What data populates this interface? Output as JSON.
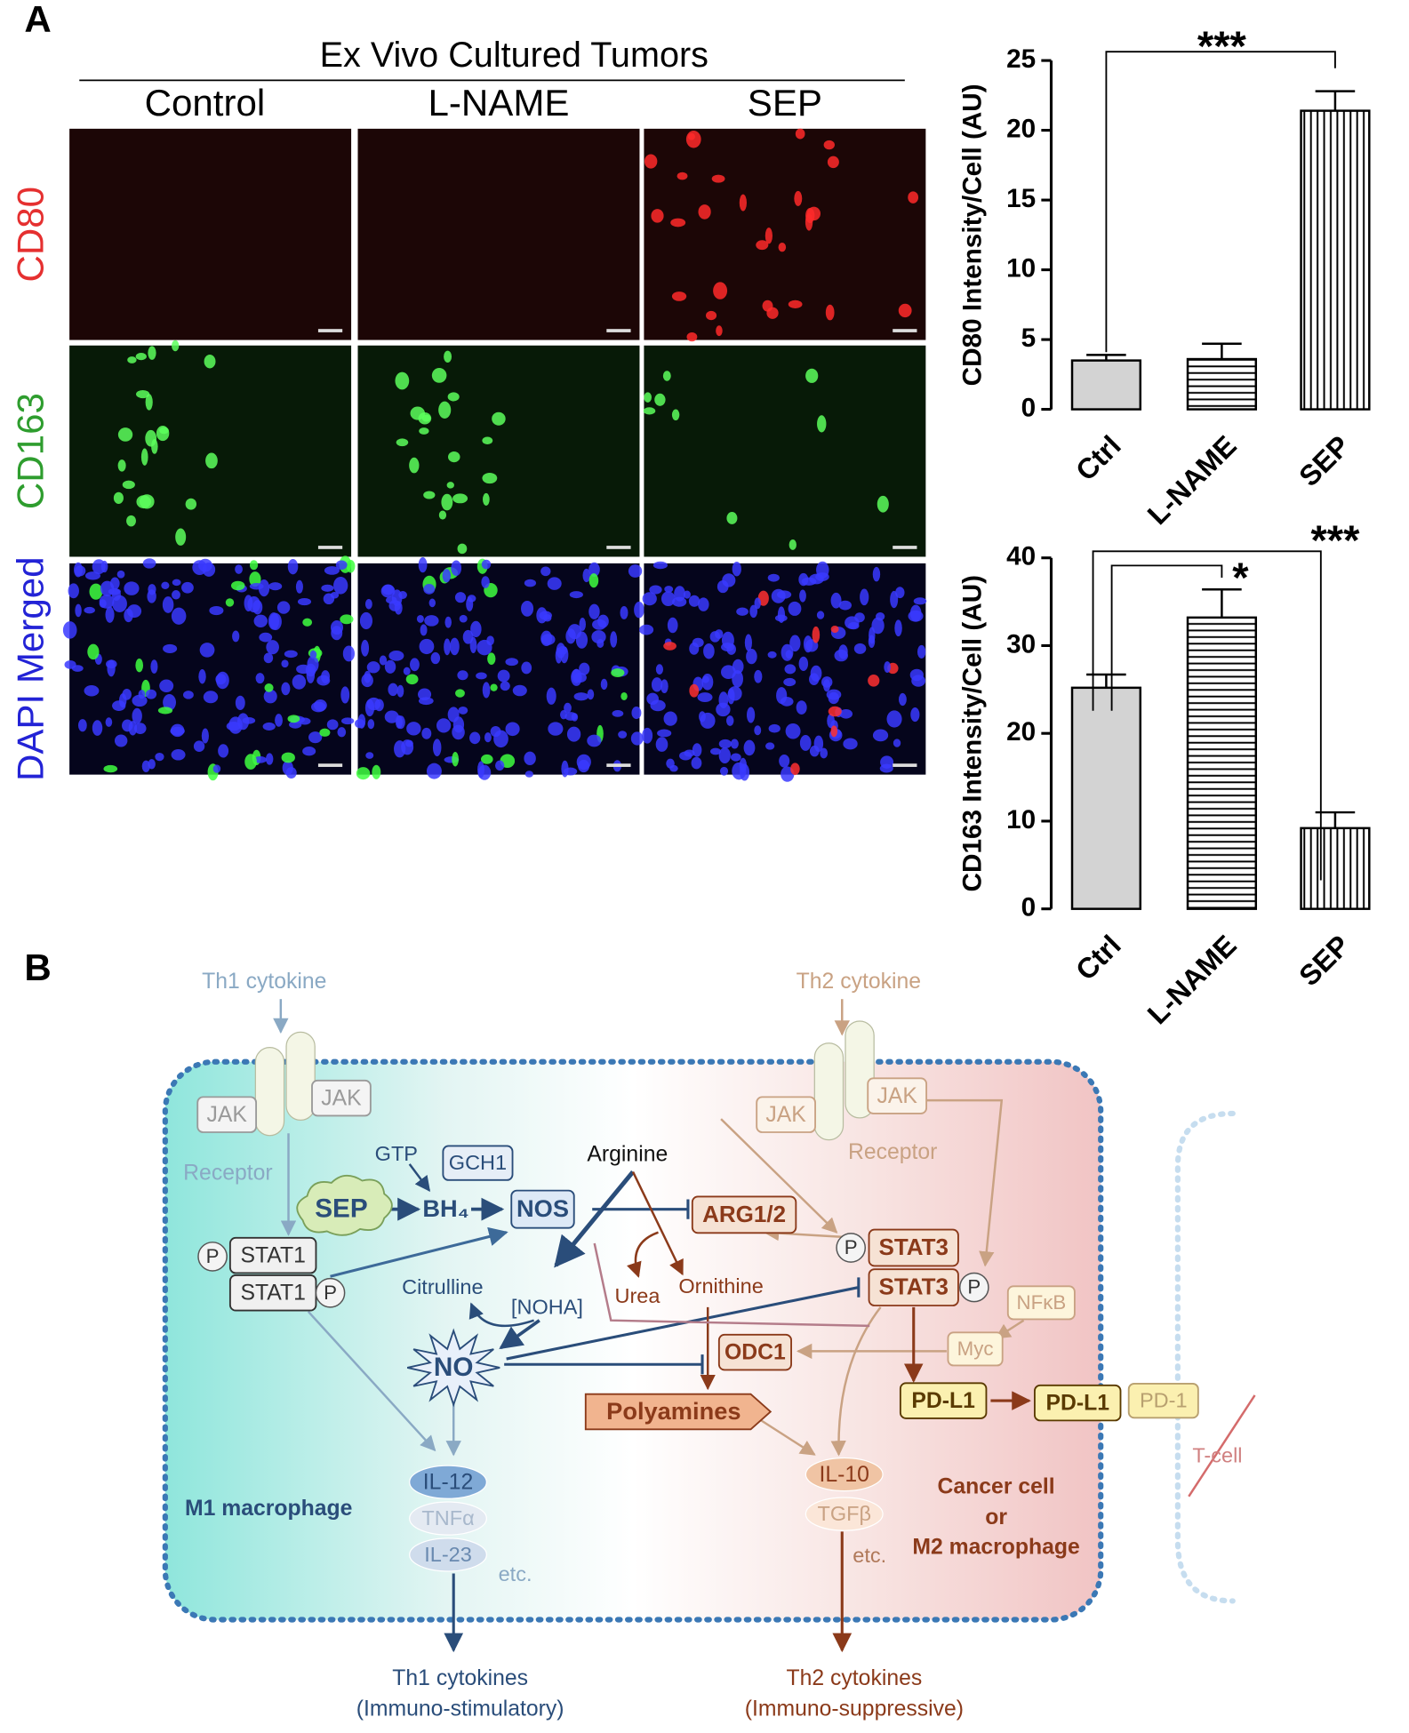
{
  "panel_labels": [
    "A",
    "B"
  ],
  "micrographs": {
    "title": "Ex Vivo Cultured Tumors",
    "columns": [
      "Control",
      "L-NAME",
      "SEP"
    ],
    "rows": [
      "CD80",
      "CD163",
      "DAPI Merged"
    ]
  },
  "chart_data": [
    {
      "type": "bar",
      "ylabel": "CD80 Intensity/Cell  (AU)",
      "categories": [
        "Ctrl",
        "L-NAME",
        "SEP"
      ],
      "values": [
        3.5,
        3.6,
        21.4
      ],
      "errors": [
        0.4,
        1.1,
        1.4
      ],
      "ylim": [
        0,
        25
      ],
      "yticks": [
        0,
        5,
        10,
        15,
        20,
        25
      ],
      "annotations": [
        "***"
      ]
    },
    {
      "type": "bar",
      "ylabel": "CD163 Intensity/Cell  (AU)",
      "categories": [
        "Ctrl",
        "L-NAME",
        "SEP"
      ],
      "values": [
        25.2,
        33.2,
        9.2
      ],
      "errors": [
        1.5,
        3.2,
        1.8
      ],
      "ylim": [
        0,
        40
      ],
      "yticks": [
        0,
        10,
        20,
        30,
        40
      ],
      "annotations": [
        "*",
        "***"
      ]
    }
  ],
  "diagram": {
    "nodes": [
      "Th1 cytokine",
      "Th2 cytokine",
      "JAK",
      "JAK",
      "Receptor",
      "JAK",
      "JAK",
      "Receptor",
      "GTP",
      "GCH1",
      "Arginine",
      "SEP",
      "BH₄",
      "NOS",
      "ARG1/2",
      "P",
      "STAT1",
      "STAT1",
      "P",
      "Citrulline",
      "[NOHA]",
      "Urea",
      "Ornithine",
      "P",
      "STAT3",
      "STAT3",
      "P",
      "NFκB",
      "Myc",
      "ODC1",
      "NO",
      "Polyamines",
      "PD-L1",
      "PD-L1",
      "PD-1",
      "T-cell",
      "IL-12",
      "TNFα",
      "IL-23",
      "etc.",
      "IL-10",
      "TGFβ",
      "etc.",
      "M1 macrophage",
      "Cancer cell",
      "or",
      "M2 macrophage",
      "Th1 cytokines",
      "(Immuno-stimulatory)",
      "Th2 cytokines",
      "(Immuno-suppressive)"
    ]
  }
}
